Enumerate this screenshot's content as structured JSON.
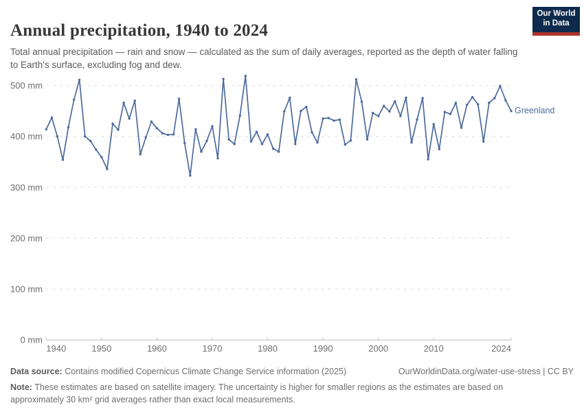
{
  "header": {
    "title": "Annual precipitation, 1940 to 2024",
    "subtitle": "Total annual precipitation — rain and snow — calculated as the sum of daily averages, reported as the depth of water falling to Earth's surface, excluding fog and dew."
  },
  "logo": {
    "line1": "Our World",
    "line2": "in Data",
    "bg_color": "#0e2a4c",
    "bar_color": "#b0352c"
  },
  "chart_data": {
    "type": "line",
    "title": "Annual precipitation, 1940 to 2024",
    "xlabel": "",
    "ylabel": "",
    "unit": "mm",
    "xlim": [
      1940,
      2024
    ],
    "ylim": [
      0,
      500
    ],
    "x_ticks": [
      1940,
      1950,
      1960,
      1970,
      1980,
      1990,
      2000,
      2010,
      2024
    ],
    "y_ticks": [
      0,
      100,
      200,
      300,
      400,
      500
    ],
    "y_tick_suffix": " mm",
    "grid": "horizontal-dashed",
    "legend_position": "right-of-line-end",
    "series": [
      {
        "name": "Greenland",
        "color": "#4C6A9C",
        "years": [
          1940,
          1941,
          1942,
          1943,
          1944,
          1945,
          1946,
          1947,
          1948,
          1949,
          1950,
          1951,
          1952,
          1953,
          1954,
          1955,
          1956,
          1957,
          1958,
          1959,
          1960,
          1961,
          1962,
          1963,
          1964,
          1965,
          1966,
          1967,
          1968,
          1969,
          1970,
          1971,
          1972,
          1973,
          1974,
          1975,
          1976,
          1977,
          1978,
          1979,
          1980,
          1981,
          1982,
          1983,
          1984,
          1985,
          1986,
          1987,
          1988,
          1989,
          1990,
          1991,
          1992,
          1993,
          1994,
          1995,
          1996,
          1997,
          1998,
          1999,
          2000,
          2001,
          2002,
          2003,
          2004,
          2005,
          2006,
          2007,
          2008,
          2009,
          2010,
          2011,
          2012,
          2013,
          2014,
          2015,
          2016,
          2017,
          2018,
          2019,
          2020,
          2021,
          2022,
          2023,
          2024
        ],
        "values": [
          414,
          437,
          400,
          354,
          418,
          472,
          511,
          400,
          391,
          374,
          359,
          336,
          425,
          413,
          466,
          435,
          470,
          365,
          398,
          429,
          416,
          406,
          403,
          404,
          474,
          387,
          323,
          414,
          370,
          391,
          420,
          357,
          513,
          394,
          385,
          441,
          519,
          390,
          409,
          385,
          404,
          376,
          370,
          449,
          476,
          385,
          450,
          458,
          408,
          388,
          435,
          436,
          431,
          433,
          384,
          392,
          512,
          468,
          394,
          446,
          440,
          460,
          449,
          469,
          440,
          476,
          388,
          433,
          475,
          355,
          424,
          375,
          448,
          444,
          466,
          417,
          462,
          477,
          463,
          390,
          466,
          475,
          499,
          471,
          450
        ]
      }
    ]
  },
  "footer": {
    "data_source_label": "Data source:",
    "data_source_text": "Contains modified Copernicus Climate Change Service information (2025)",
    "link": "OurWorldinData.org/water-use-stress | CC BY",
    "note_label": "Note:",
    "note_text": "These estimates are based on satellite imagery. The uncertainty is higher for smaller regions as the estimates are based on approximately 30 km² grid averages rather than exact local measurements."
  }
}
